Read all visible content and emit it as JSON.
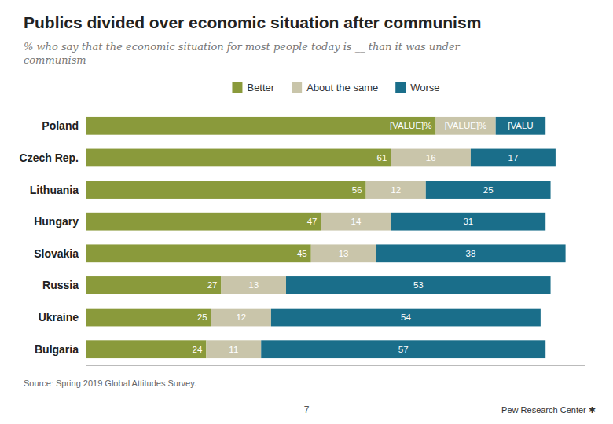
{
  "chart_data": {
    "type": "bar",
    "orientation": "horizontal",
    "stacked": true,
    "title": "Publics divided over economic situation after communism",
    "subtitle": "% who say that the economic situation for most people today is __ than it was under\ncommunism",
    "annotations": [
      "Source: Spring 2019 Global Attitudes Survey.",
      "7",
      "Pew Research Center ✱"
    ],
    "categories": [
      "Poland",
      "Czech Rep.",
      "Lithuania",
      "Hungary",
      "Slovakia",
      "Russia",
      "Ukraine",
      "Bulgaria"
    ],
    "series": [
      {
        "name": "Better",
        "color": "#8a9a3b",
        "values": [
          70,
          61,
          56,
          47,
          45,
          27,
          25,
          24
        ],
        "value_labels": [
          "[VALUE]%",
          "61",
          "56",
          "47",
          "45",
          "27",
          "25",
          "24"
        ]
      },
      {
        "name": "About the same",
        "color": "#c9c5aa",
        "values": [
          12,
          16,
          12,
          14,
          13,
          13,
          12,
          11
        ],
        "value_labels": [
          "[VALUE]%",
          "16",
          "12",
          "14",
          "13",
          "13",
          "12",
          "11"
        ]
      },
      {
        "name": "Worse",
        "color": "#1a6e8a",
        "values": [
          10,
          17,
          25,
          31,
          38,
          53,
          54,
          57
        ],
        "value_labels": [
          "[VALU",
          "17",
          "25",
          "31",
          "38",
          "53",
          "54",
          "57"
        ]
      }
    ],
    "xlim": [
      0,
      100
    ],
    "data_labels": true,
    "tick_labels": "y",
    "legend": "top",
    "grid": false
  }
}
